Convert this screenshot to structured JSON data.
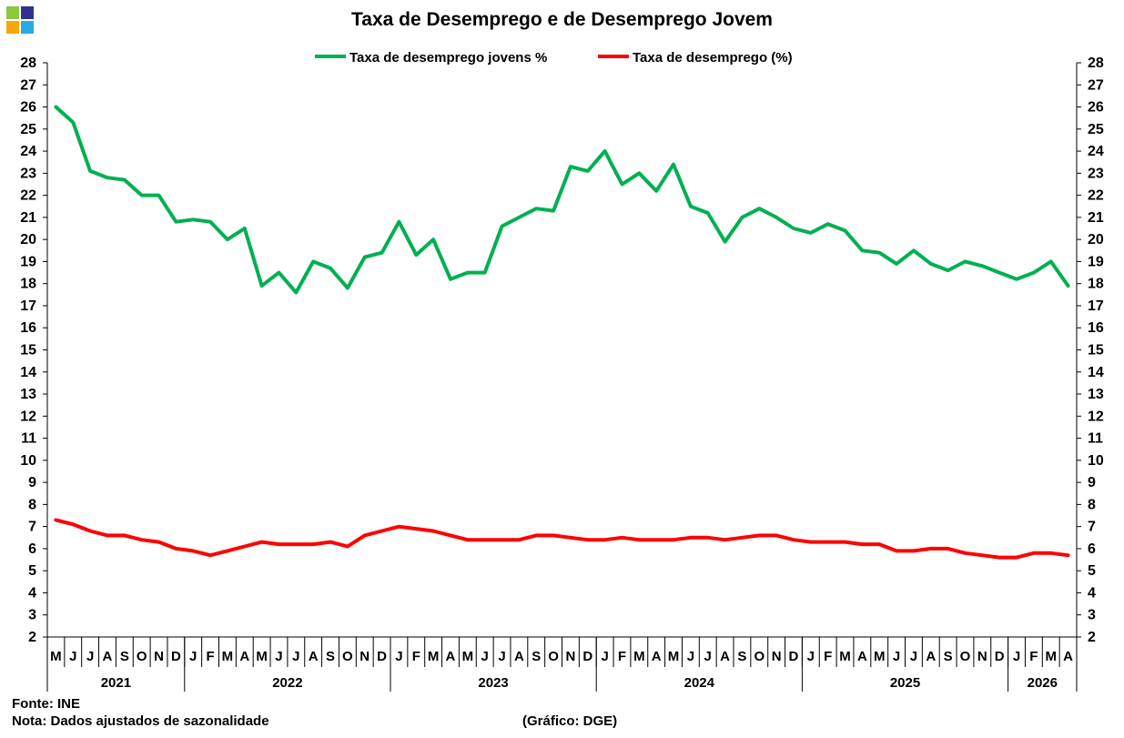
{
  "header": {
    "title": "Taxa de Desemprego e de Desemprego Jovem",
    "logo_colors": [
      "#8dc63f",
      "#2e3192",
      "#f7a70b",
      "#29abe2"
    ]
  },
  "footer": {
    "source": "Fonte: INE",
    "note": "Nota: Dados ajustados de sazonalidade",
    "credit": "(Gráfico: DGE)"
  },
  "chart_data": {
    "type": "line",
    "title": "Taxa de Desemprego e de Desemprego Jovem",
    "xlabel": "",
    "ylabel": "",
    "ylim": [
      2,
      28
    ],
    "y_ticks": [
      2,
      3,
      4,
      5,
      6,
      7,
      8,
      9,
      10,
      11,
      12,
      13,
      14,
      15,
      16,
      17,
      18,
      19,
      20,
      21,
      22,
      23,
      24,
      25,
      26,
      27,
      28
    ],
    "y_axes": [
      "left",
      "right"
    ],
    "grid": false,
    "legend_position": "top-center",
    "month_labels": [
      "M",
      "J",
      "J",
      "A",
      "S",
      "O",
      "N",
      "D",
      "J",
      "F",
      "M",
      "A",
      "M",
      "J",
      "J",
      "A",
      "S",
      "O",
      "N",
      "D",
      "J",
      "F",
      "M",
      "A",
      "M",
      "J",
      "J",
      "A",
      "S",
      "O",
      "N",
      "D",
      "J",
      "F",
      "M",
      "A",
      "M",
      "J",
      "J",
      "A",
      "S",
      "O",
      "N",
      "D",
      "J",
      "F",
      "M",
      "A",
      "M",
      "J",
      "J",
      "A",
      "S",
      "O",
      "N",
      "D",
      "J",
      "F",
      "M",
      "A"
    ],
    "year_groups": [
      {
        "label": "2021",
        "months": 8
      },
      {
        "label": "2022",
        "months": 12
      },
      {
        "label": "2023",
        "months": 12
      },
      {
        "label": "2024",
        "months": 12
      },
      {
        "label": "2025",
        "months": 12
      },
      {
        "label": "2026",
        "months": 4
      }
    ],
    "series": [
      {
        "name": "Taxa de desemprego jovens %",
        "color": "#00b050",
        "values": [
          26.0,
          25.3,
          23.1,
          22.8,
          22.7,
          22.0,
          22.0,
          20.8,
          20.9,
          20.8,
          20.0,
          20.5,
          17.9,
          18.5,
          17.6,
          19.0,
          18.7,
          17.8,
          19.2,
          19.4,
          20.8,
          19.3,
          20.0,
          18.2,
          18.5,
          18.5,
          20.6,
          21.0,
          21.4,
          21.3,
          23.3,
          23.1,
          24.0,
          22.5,
          23.0,
          22.2,
          23.4,
          21.5,
          21.2,
          19.9,
          21.0,
          21.4,
          21.0,
          20.5,
          20.3,
          20.7,
          20.4,
          19.5,
          19.4,
          18.9,
          19.5,
          18.9,
          18.6,
          19.0,
          18.8,
          18.5,
          18.2,
          18.5,
          19.0,
          17.9
        ]
      },
      {
        "name": "Taxa de desemprego (%)",
        "color": "#ff0000",
        "values": [
          7.3,
          7.1,
          6.8,
          6.6,
          6.6,
          6.4,
          6.3,
          6.0,
          5.9,
          5.7,
          5.9,
          6.1,
          6.3,
          6.2,
          6.2,
          6.2,
          6.3,
          6.1,
          6.6,
          6.8,
          7.0,
          6.9,
          6.8,
          6.6,
          6.4,
          6.4,
          6.4,
          6.4,
          6.6,
          6.6,
          6.5,
          6.4,
          6.4,
          6.5,
          6.4,
          6.4,
          6.4,
          6.5,
          6.5,
          6.4,
          6.5,
          6.6,
          6.6,
          6.4,
          6.3,
          6.3,
          6.3,
          6.2,
          6.2,
          5.9,
          5.9,
          6.0,
          6.0,
          5.8,
          5.7,
          5.6,
          5.6,
          5.8,
          5.8,
          5.7
        ]
      }
    ]
  }
}
